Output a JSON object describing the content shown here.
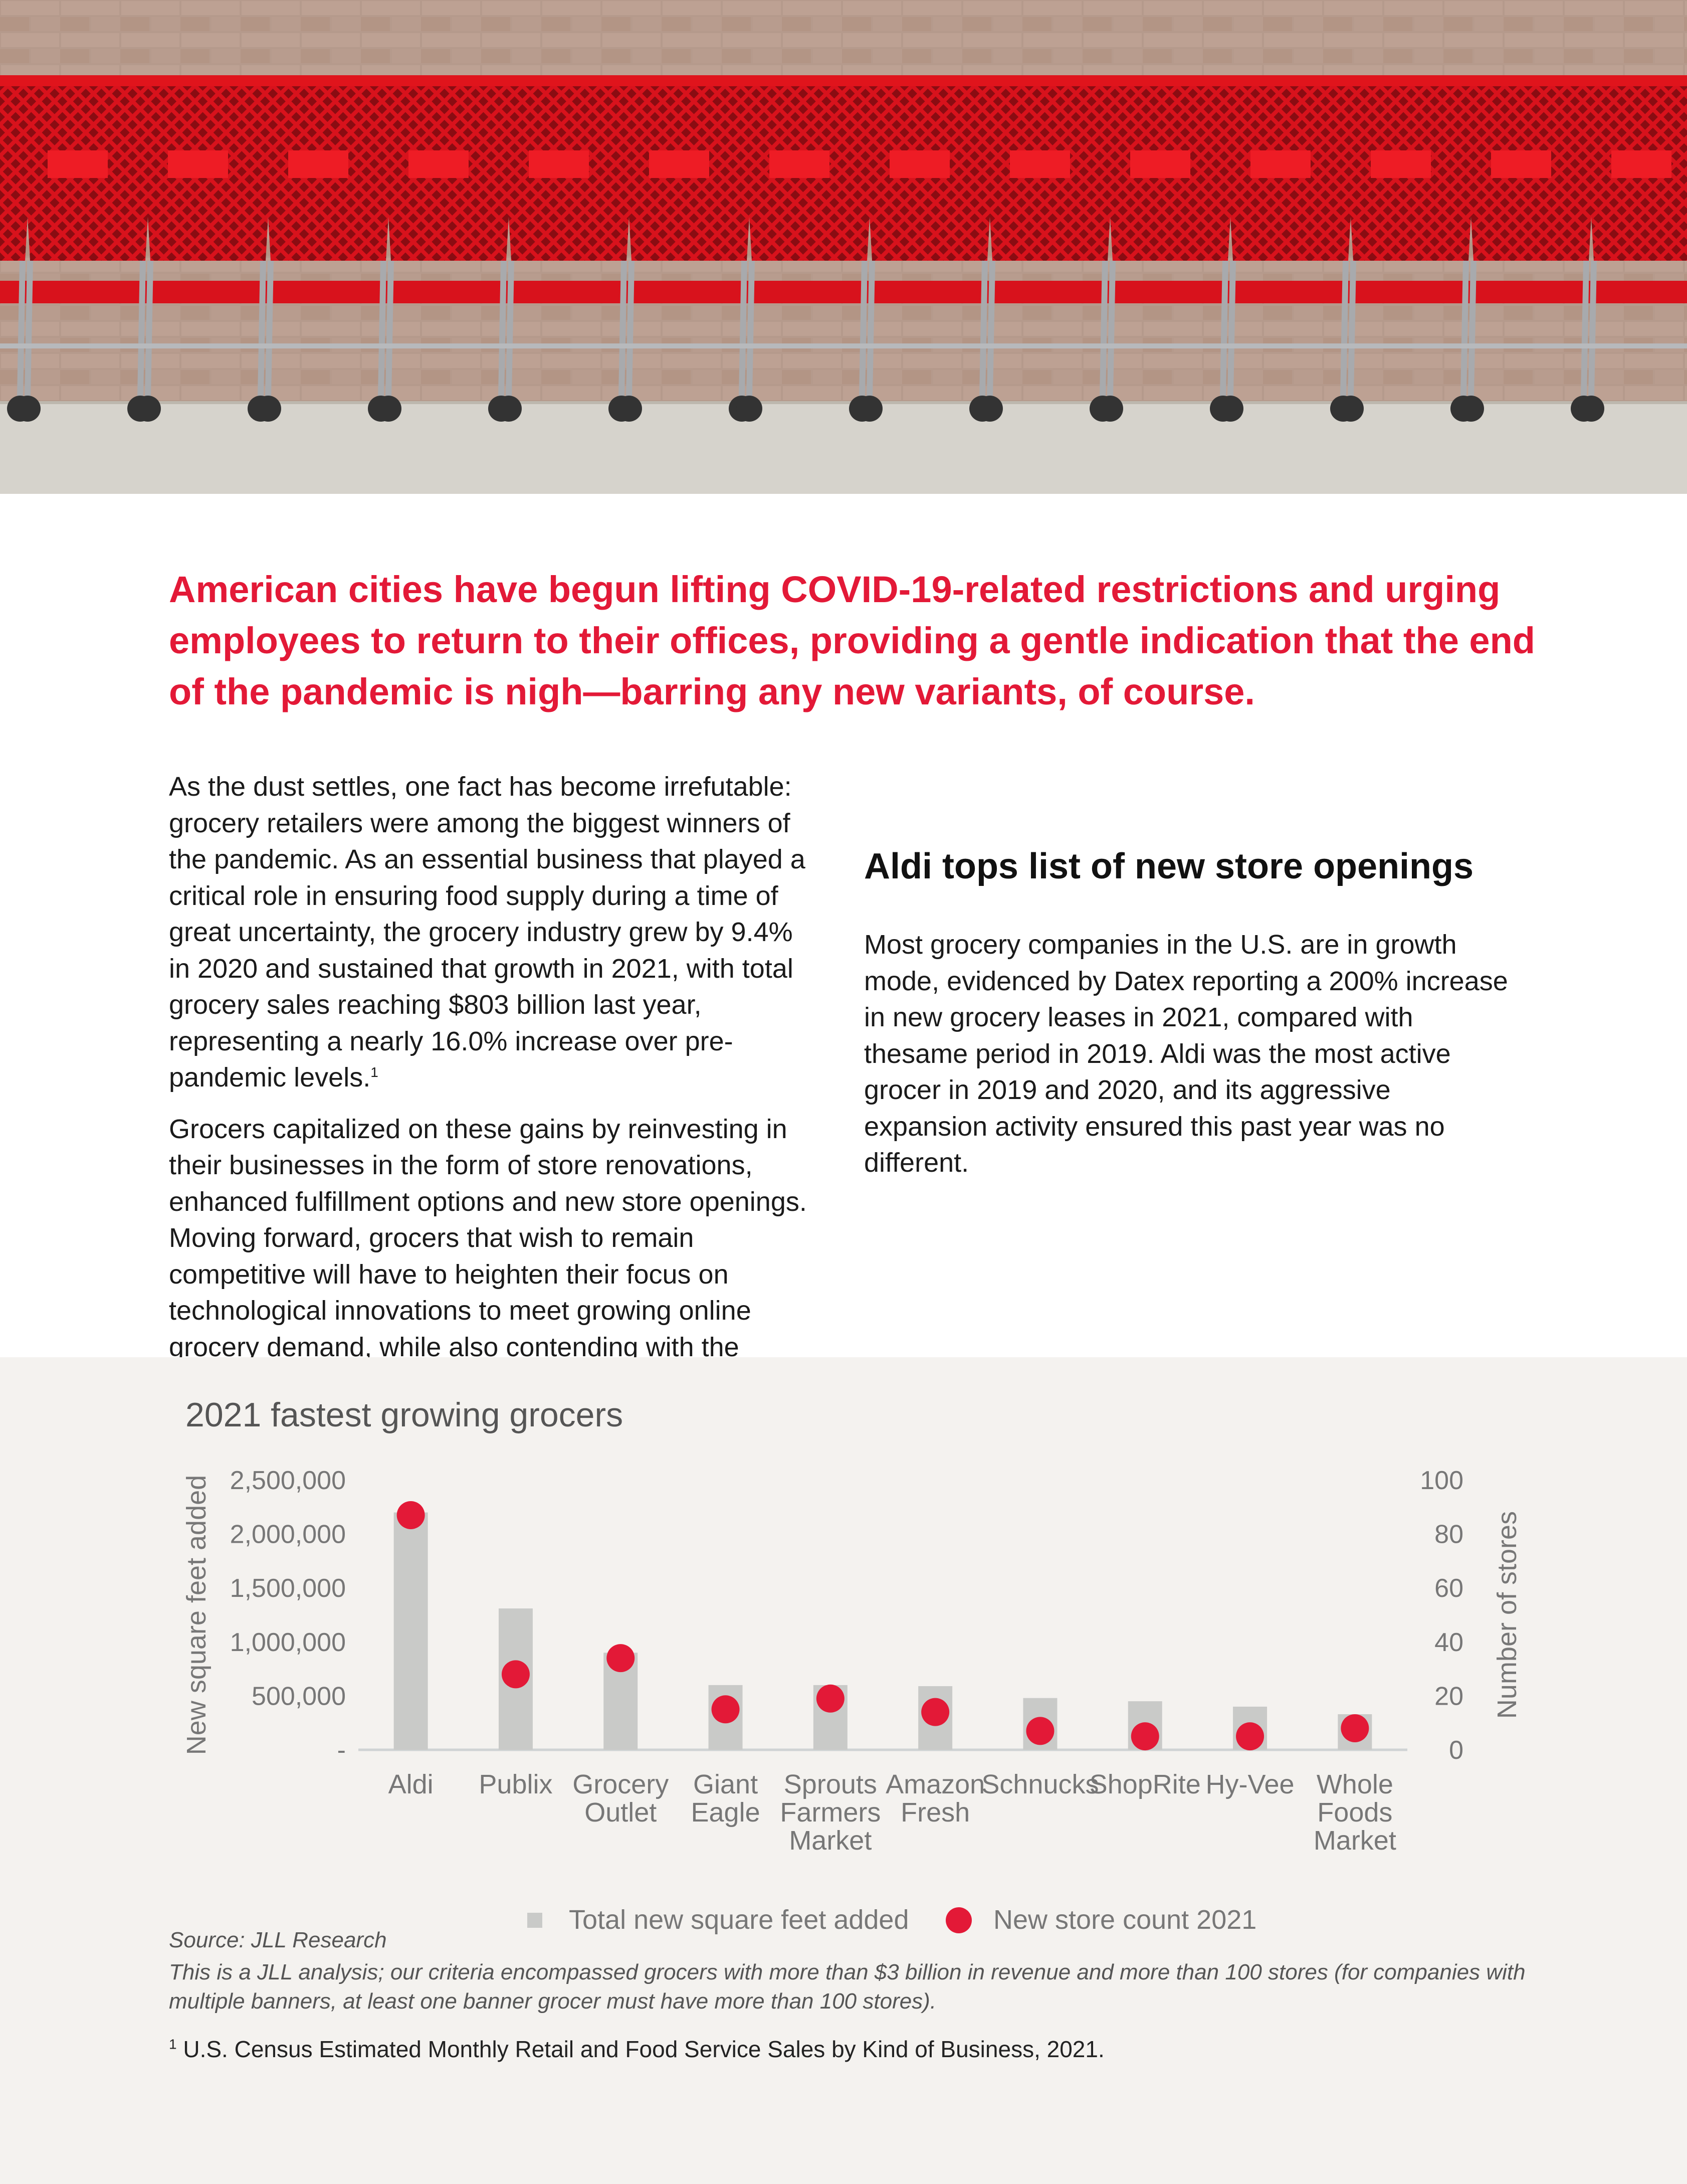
{
  "hero_image": {
    "alt": "Row of red shopping carts lined up against a brick wall"
  },
  "headline": "American cities have begun lifting COVID-19-related restrictions and urging employees to return to their offices, providing a gentle indication that the end of the pandemic is nigh—barring any new variants, of course.",
  "body": {
    "para1": "As the dust settles, one fact has become irrefutable: grocery retailers were among the biggest winners of the pandemic. As an essential business that played a critical role in ensuring food supply during a time of great uncertainty, the grocery industry grew by 9.4% in 2020 and sustained that growth in 2021, with total grocery sales reaching $803 billion last year, representing a nearly 16.0% increase over pre-pandemic levels.",
    "para1_ref": "1",
    "para2": "Grocers capitalized on these gains by reinvesting in their businesses in the form of store renovations, enhanced fulfillment options and new store openings. Moving forward, grocers that wish to remain competitive will have to heighten their focus on technological innovations to meet growing online grocery demand, while also contending with the impacts of inflation and consumers’ return to in-person dining experiences.",
    "subheading": "Aldi tops list of new store openings",
    "para3": "Most grocery companies in the U.S. are in growth mode, evidenced by Datex reporting a 200% increase in new grocery leases in 2021, compared with thesame period in 2019. Aldi was the most active grocer in 2019 and 2020, and its aggressive expansion activity ensured this past year was no different."
  },
  "chart_data": {
    "type": "bar",
    "title": "2021 fastest growing grocers",
    "categories": [
      "Aldi",
      "Publix",
      "Grocery Outlet",
      "Giant Eagle",
      "Sprouts Farmers Market",
      "Amazon Fresh",
      "Schnucks",
      "ShopRite",
      "Hy-Vee",
      "Whole Foods Market"
    ],
    "category_lines": [
      [
        "Aldi"
      ],
      [
        "Publix"
      ],
      [
        "Grocery",
        "Outlet"
      ],
      [
        "Giant",
        "Eagle"
      ],
      [
        "Sprouts",
        "Farmers",
        "Market"
      ],
      [
        "Amazon",
        "Fresh"
      ],
      [
        "Schnucks"
      ],
      [
        "ShopRite"
      ],
      [
        "Hy-Vee"
      ],
      [
        "Whole",
        "Foods",
        "Market"
      ]
    ],
    "series": [
      {
        "name": "Total new square feet added",
        "type": "bar",
        "axis": "left",
        "values": [
          2200000,
          1310000,
          900000,
          600000,
          600000,
          590000,
          480000,
          450000,
          400000,
          330000
        ]
      },
      {
        "name": "New store count 2021",
        "type": "scatter",
        "axis": "right",
        "values": [
          87,
          28,
          34,
          15,
          19,
          14,
          7,
          5,
          5,
          8
        ]
      }
    ],
    "ylabel": "New square feet added",
    "y2label": "Number of stores",
    "ylim": [
      0,
      2500000
    ],
    "y2lim": [
      0,
      100
    ],
    "yticks": [
      0,
      500000,
      1000000,
      1500000,
      2000000,
      2500000
    ],
    "ytick_labels": [
      "-",
      "500,000",
      "1,000,000",
      "1,500,000",
      "2,000,000",
      "2,500,000"
    ],
    "y2ticks": [
      0,
      20,
      40,
      60,
      80,
      100
    ],
    "y2tick_labels": [
      "0",
      "20",
      "40",
      "60",
      "80",
      "100"
    ],
    "grid": false,
    "legend_position": "bottom-center",
    "colors": {
      "bar": "#c9cac8",
      "dot": "#e31937",
      "axis_text": "#777777",
      "title": "#555555"
    }
  },
  "footnotes": {
    "source": "Source: JLL Research",
    "analysis_note": "This is a JLL analysis; our criteria encompassed grocers with more than $3 billion in revenue and more than 100 stores (for companies with multiple banners, at least one banner grocer must have more than 100 stores).",
    "ref_number": "1",
    "ref_text": "U.S. Census Estimated Monthly Retail and Food Service Sales by Kind of Business, 2021."
  },
  "colors": {
    "accent": "#e31937",
    "panel_bg": "#f4f2ef"
  }
}
